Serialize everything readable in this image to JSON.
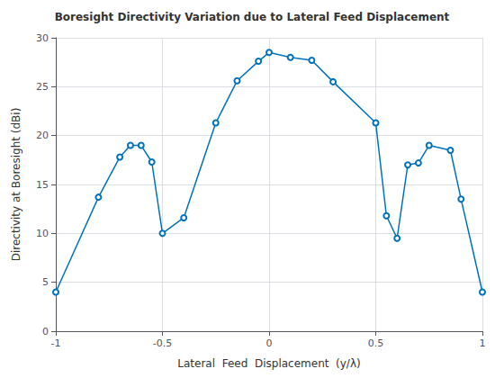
{
  "chart_data": {
    "type": "line",
    "title": "Boresight Directivity Variation due to Lateral Feed Displacement",
    "x_label": "Lateral  Feed  Displacement  (y/λ)",
    "y_label": "Directivity at Boresight (dBi)",
    "x": [
      -1.0,
      -0.8,
      -0.7,
      -0.65,
      -0.6,
      -0.55,
      -0.5,
      -0.4,
      -0.25,
      -0.15,
      -0.05,
      0.0,
      0.1,
      0.2,
      0.3,
      0.5,
      0.55,
      0.6,
      0.65,
      0.7,
      0.75,
      0.85,
      0.9,
      1.0
    ],
    "values": [
      4.0,
      13.7,
      17.8,
      19.0,
      19.0,
      17.3,
      10.0,
      11.6,
      21.3,
      25.6,
      27.6,
      28.5,
      28.0,
      27.7,
      25.5,
      21.3,
      11.8,
      9.5,
      17.0,
      17.2,
      19.0,
      18.5,
      13.5,
      4.0
    ],
    "color": "#0072BD",
    "marker": "circle",
    "xlim": [
      -1.0,
      1.0
    ],
    "xticks": [
      -1,
      -0.5,
      0,
      0.5,
      1
    ],
    "ylim": [
      0,
      30
    ],
    "yticks": [
      0,
      5,
      10,
      15,
      20,
      25,
      30
    ],
    "grid": true
  }
}
